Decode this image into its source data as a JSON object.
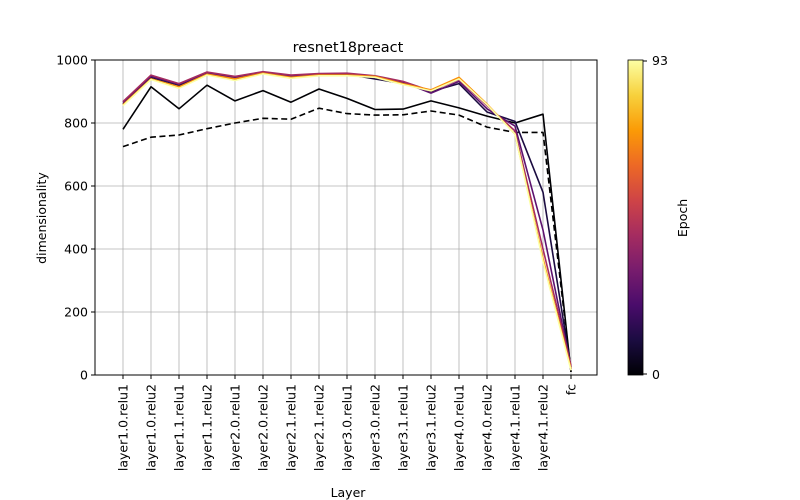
{
  "chart_data": {
    "type": "line",
    "title": "resnet18preact",
    "xlabel": "Layer",
    "ylabel": "dimensionality",
    "ylim": [
      0,
      1000
    ],
    "yticks": [
      0,
      200,
      400,
      600,
      800,
      1000
    ],
    "grid": true,
    "categories": [
      "layer1.0.relu1",
      "layer1.0.relu2",
      "layer1.1.relu1",
      "layer1.1.relu2",
      "layer2.0.relu1",
      "layer2.0.relu2",
      "layer2.1.relu1",
      "layer2.1.relu2",
      "layer3.0.relu1",
      "layer3.0.relu2",
      "layer3.1.relu1",
      "layer3.1.relu2",
      "layer4.0.relu1",
      "layer4.0.relu2",
      "layer4.1.relu1",
      "layer4.1.relu2",
      "fc"
    ],
    "colorbar": {
      "label": "Epoch",
      "min_label": "0",
      "max_label": "93",
      "colormap": "inferno",
      "stops": [
        "#000004",
        "#1b0c41",
        "#4a0c6b",
        "#781c6d",
        "#a52c60",
        "#cf4446",
        "#ed6925",
        "#fb9b06",
        "#f7d13d",
        "#fcffa4"
      ]
    },
    "series": [
      {
        "style": "dashed",
        "color": "#000000",
        "values": [
          725,
          755,
          762,
          782,
          800,
          815,
          812,
          847,
          830,
          825,
          826,
          838,
          825,
          787,
          770,
          770,
          10
        ]
      },
      {
        "epoch": 0,
        "color": "#000004",
        "values": [
          780,
          915,
          845,
          920,
          870,
          903,
          866,
          908,
          878,
          843,
          844,
          870,
          848,
          822,
          800,
          828,
          10
        ]
      },
      {
        "epoch": 10,
        "color": "#1b0c41",
        "values": [
          860,
          945,
          920,
          955,
          940,
          960,
          948,
          955,
          955,
          940,
          925,
          900,
          925,
          835,
          805,
          580,
          20
        ]
      },
      {
        "epoch": 25,
        "color": "#5c126e",
        "values": [
          865,
          948,
          923,
          958,
          945,
          962,
          950,
          956,
          957,
          948,
          930,
          895,
          932,
          845,
          790,
          460,
          25
        ]
      },
      {
        "epoch": 45,
        "color": "#a52c60",
        "values": [
          868,
          952,
          925,
          962,
          948,
          963,
          952,
          957,
          958,
          950,
          932,
          902,
          938,
          855,
          775,
          400,
          30
        ]
      },
      {
        "epoch": 70,
        "color": "#f98e09",
        "values": [
          858,
          940,
          915,
          955,
          940,
          958,
          945,
          952,
          952,
          948,
          925,
          905,
          945,
          860,
          765,
          370,
          20
        ]
      },
      {
        "epoch": 93,
        "color": "#fcffa4",
        "values": [
          855,
          938,
          910,
          952,
          935,
          956,
          942,
          950,
          950,
          945,
          922,
          902,
          940,
          858,
          765,
          360,
          15
        ]
      }
    ]
  }
}
